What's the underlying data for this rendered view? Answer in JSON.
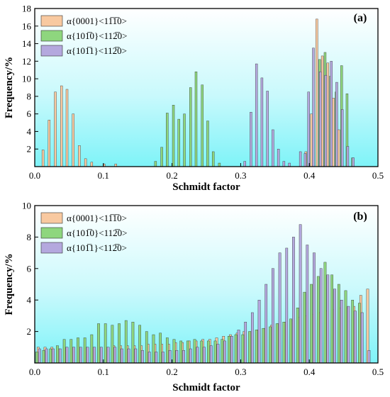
{
  "chart_data": [
    {
      "type": "bar",
      "panel_label": "(a)",
      "xlabel": "Schmidt factor",
      "ylabel": "Frequency/%",
      "xlim": [
        0.0,
        0.5
      ],
      "ylim": [
        0,
        18
      ],
      "xticks": [
        "0.0",
        "0.1",
        "0.2",
        "0.3",
        "0.4",
        "0.5"
      ],
      "yticks": [
        "2",
        "4",
        "6",
        "8",
        "10",
        "12",
        "14",
        "16",
        "18"
      ],
      "legend_position": "top-left",
      "background": [
        "#ffffff",
        "#7ef3f8"
      ],
      "series": [
        {
          "name": "α{0001}<11̅1̅0>",
          "color": "#f8c9a0",
          "points": [
            {
              "x": 0.012,
              "y": 1.9
            },
            {
              "x": 0.021,
              "y": 5.3
            },
            {
              "x": 0.03,
              "y": 8.5
            },
            {
              "x": 0.039,
              "y": 9.2
            },
            {
              "x": 0.047,
              "y": 8.8
            },
            {
              "x": 0.056,
              "y": 6.0
            },
            {
              "x": 0.065,
              "y": 2.4
            },
            {
              "x": 0.074,
              "y": 0.9
            },
            {
              "x": 0.083,
              "y": 0.5
            },
            {
              "x": 0.101,
              "y": 0.3
            },
            {
              "x": 0.118,
              "y": 0.3
            },
            {
              "x": 0.395,
              "y": 1.7
            },
            {
              "x": 0.403,
              "y": 6.0
            },
            {
              "x": 0.411,
              "y": 16.8
            },
            {
              "x": 0.419,
              "y": 12.6
            },
            {
              "x": 0.427,
              "y": 11.8
            },
            {
              "x": 0.435,
              "y": 7.8
            },
            {
              "x": 0.443,
              "y": 4.2
            }
          ]
        },
        {
          "name": "α{101̅0}<112̅0>",
          "color": "#8ed67e",
          "points": [
            {
              "x": 0.176,
              "y": 0.6
            },
            {
              "x": 0.185,
              "y": 2.2
            },
            {
              "x": 0.193,
              "y": 6.1
            },
            {
              "x": 0.202,
              "y": 7.0
            },
            {
              "x": 0.21,
              "y": 5.4
            },
            {
              "x": 0.218,
              "y": 6.0
            },
            {
              "x": 0.227,
              "y": 9.0
            },
            {
              "x": 0.235,
              "y": 10.8
            },
            {
              "x": 0.244,
              "y": 9.3
            },
            {
              "x": 0.252,
              "y": 5.2
            },
            {
              "x": 0.26,
              "y": 1.7
            },
            {
              "x": 0.269,
              "y": 0.4
            },
            {
              "x": 0.415,
              "y": 12.2
            },
            {
              "x": 0.423,
              "y": 13.0
            },
            {
              "x": 0.431,
              "y": 10.3
            },
            {
              "x": 0.439,
              "y": 8.5
            },
            {
              "x": 0.447,
              "y": 11.5
            },
            {
              "x": 0.455,
              "y": 8.3
            },
            {
              "x": 0.463,
              "y": 1.0
            }
          ]
        },
        {
          "name": "α{101̅1}<112̅0>",
          "color": "#b4a8de",
          "points": [
            {
              "x": 0.306,
              "y": 0.6
            },
            {
              "x": 0.315,
              "y": 6.2
            },
            {
              "x": 0.323,
              "y": 11.7
            },
            {
              "x": 0.331,
              "y": 10.1
            },
            {
              "x": 0.339,
              "y": 8.6
            },
            {
              "x": 0.347,
              "y": 4.2
            },
            {
              "x": 0.355,
              "y": 2.0
            },
            {
              "x": 0.363,
              "y": 0.6
            },
            {
              "x": 0.371,
              "y": 0.4
            },
            {
              "x": 0.387,
              "y": 1.7
            },
            {
              "x": 0.394,
              "y": 1.5
            },
            {
              "x": 0.399,
              "y": 8.5
            },
            {
              "x": 0.406,
              "y": 13.5
            },
            {
              "x": 0.416,
              "y": 10.8
            },
            {
              "x": 0.424,
              "y": 10.4
            },
            {
              "x": 0.432,
              "y": 12.0
            },
            {
              "x": 0.44,
              "y": 9.6
            },
            {
              "x": 0.448,
              "y": 6.5
            },
            {
              "x": 0.456,
              "y": 2.3
            },
            {
              "x": 0.464,
              "y": 1.0
            }
          ]
        }
      ]
    },
    {
      "type": "bar",
      "panel_label": "(b)",
      "xlabel": "Schmidt factor",
      "ylabel": "Frequency/%",
      "xlim": [
        0.0,
        0.5
      ],
      "ylim": [
        0,
        10
      ],
      "xticks": [
        "0.0",
        "0.1",
        "0.2",
        "0.3",
        "0.4",
        "0.5"
      ],
      "yticks": [
        "2",
        "4",
        "6",
        "8",
        "10"
      ],
      "legend_position": "top-left",
      "background": [
        "#ffffff",
        "#7ef3f8"
      ],
      "series": [
        {
          "name": "α{0001}<11̅1̅0>",
          "color": "#f8c9a0",
          "x_start": 0.005,
          "x_step": 0.01,
          "values": [
            1.0,
            1.0,
            1.0,
            0.9,
            1.0,
            1.0,
            1.0,
            1.0,
            1.0,
            1.0,
            1.0,
            1.1,
            1.1,
            1.1,
            1.1,
            1.1,
            1.2,
            1.2,
            1.2,
            1.2,
            1.3,
            1.3,
            1.4,
            1.4,
            1.5,
            1.5,
            1.6,
            1.7,
            1.8,
            1.9,
            2.0,
            2.0,
            2.1,
            2.2,
            2.4,
            2.5,
            2.6,
            2.7,
            2.9,
            3.0,
            3.1,
            3.2,
            3.3,
            3.4,
            3.5,
            3.5,
            3.6,
            4.3,
            4.7
          ]
        },
        {
          "name": "α{101̅0}<112̅0>",
          "color": "#8ed67e",
          "x_start": 0.003,
          "x_step": 0.01,
          "values": [
            0.7,
            0.8,
            0.9,
            1.1,
            1.5,
            1.5,
            1.6,
            1.6,
            1.8,
            2.5,
            2.5,
            2.4,
            2.5,
            2.7,
            2.6,
            2.4,
            2.0,
            1.8,
            1.9,
            1.6,
            1.5,
            1.4,
            1.4,
            1.5,
            1.4,
            1.4,
            1.4,
            1.5,
            1.7,
            1.8,
            1.8,
            2.0,
            2.1,
            2.2,
            2.3,
            2.5,
            2.6,
            2.8,
            3.5,
            4.5,
            5.0,
            5.5,
            6.4,
            5.6,
            5.0,
            4.6,
            4.0,
            3.8
          ]
        },
        {
          "name": "α{101̅1}<112̅0>",
          "color": "#b4a8de",
          "x_start": 0.007,
          "x_step": 0.01,
          "values": [
            0.9,
            0.9,
            0.9,
            0.9,
            1.0,
            1.0,
            1.0,
            1.0,
            1.0,
            1.0,
            1.0,
            1.0,
            0.9,
            0.9,
            0.9,
            0.8,
            0.7,
            0.7,
            0.7,
            0.8,
            0.8,
            0.8,
            0.9,
            1.0,
            1.0,
            1.1,
            1.2,
            1.4,
            1.7,
            2.1,
            2.6,
            3.2,
            4.0,
            5.0,
            6.0,
            7.0,
            7.3,
            8.0,
            8.8,
            7.5,
            7.0,
            6.0,
            5.6,
            4.7,
            4.0,
            3.6,
            3.3,
            3.2,
            0.8
          ]
        }
      ]
    }
  ]
}
